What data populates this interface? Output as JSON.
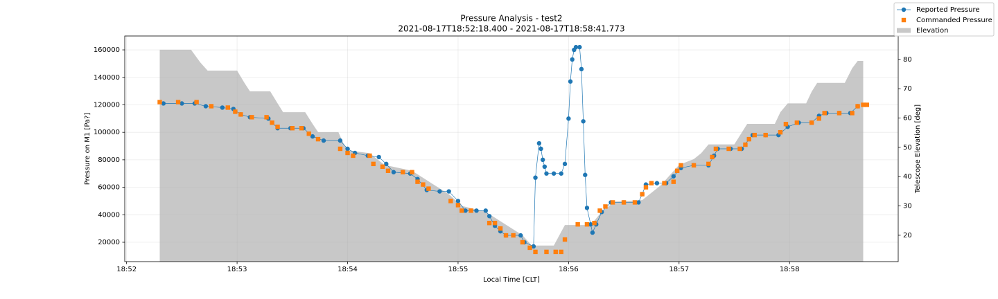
{
  "chart_data": {
    "type": "line",
    "title": "Pressure Analysis - test2",
    "subtitle": "2021-08-17T18:52:18.400 - 2021-08-17T18:58:41.773",
    "x_label": "Local Time [CLT]",
    "y_label": "Pressure on M1 [Pa?]",
    "y2_label": "Telescope Elevation [deg]",
    "xlim": [
      "18:51:59",
      "18:58:59"
    ],
    "xticks": [
      "18:52",
      "18:53",
      "18:54",
      "18:55",
      "18:56",
      "18:57",
      "18:58"
    ],
    "ylim": [
      5900,
      170100
    ],
    "yticks": [
      20000,
      40000,
      60000,
      80000,
      100000,
      120000,
      140000,
      160000
    ],
    "y2lim": [
      11,
      88
    ],
    "y2ticks": [
      20,
      30,
      40,
      50,
      60,
      70,
      80
    ],
    "grid": true,
    "legend": "upper right",
    "series": [
      {
        "name": "Reported Pressure",
        "color": "#1f77b4",
        "kind": "line-marker",
        "x": [
          "18:52:20",
          "18:52:30",
          "18:52:37",
          "18:52:43",
          "18:52:52",
          "18:52:58",
          "18:53:02",
          "18:53:07",
          "18:53:17",
          "18:53:22",
          "18:53:29",
          "18:53:36",
          "18:53:41",
          "18:53:47",
          "18:53:56",
          "18:54:00",
          "18:54:04",
          "18:54:11",
          "18:54:17",
          "18:54:21",
          "18:54:25",
          "18:54:34",
          "18:54:38",
          "18:54:43",
          "18:54:50",
          "18:54:55",
          "18:55:00",
          "18:55:04",
          "18:55:10",
          "18:55:15",
          "18:55:17",
          "18:55:20",
          "18:55:23",
          "18:55:26",
          "18:55:34",
          "18:55:36",
          "18:55:41",
          "18:55:42",
          "18:55:44",
          "18:55:45",
          "18:55:46",
          "18:55:47",
          "18:55:48",
          "18:55:52",
          "18:55:56",
          "18:55:58",
          "18:56:00",
          "18:56:01",
          "18:56:02",
          "18:56:03",
          "18:56:04",
          "18:56:06",
          "18:56:07",
          "18:56:08",
          "18:56:09",
          "18:56:10",
          "18:56:12",
          "18:56:13",
          "18:56:15",
          "18:56:18",
          "18:56:23",
          "18:56:30",
          "18:56:38",
          "18:56:40",
          "18:56:42",
          "18:56:48",
          "18:56:53",
          "18:56:57",
          "18:57:01",
          "18:57:08",
          "18:57:16",
          "18:57:19",
          "18:57:21",
          "18:57:28",
          "18:57:34",
          "18:57:38",
          "18:57:40",
          "18:57:47",
          "18:57:54",
          "18:57:59",
          "18:58:05",
          "18:58:12",
          "18:58:16",
          "18:58:20",
          "18:58:27",
          "18:58:33",
          "18:58:37"
        ],
        "values": [
          121000,
          121000,
          121000,
          119000,
          118000,
          117000,
          113000,
          111000,
          110000,
          103000,
          103000,
          103000,
          97000,
          94000,
          94000,
          88000,
          85000,
          83000,
          82000,
          77000,
          71000,
          70000,
          66000,
          58000,
          57000,
          57000,
          50000,
          43000,
          43000,
          43000,
          39000,
          32000,
          28000,
          25000,
          25000,
          20000,
          17000,
          67000,
          92000,
          88000,
          80000,
          75000,
          70000,
          70000,
          70000,
          77000,
          110000,
          137000,
          153000,
          160000,
          162000,
          162000,
          146000,
          108000,
          69000,
          45000,
          33000,
          27000,
          33000,
          42000,
          49000,
          49000,
          49000,
          55000,
          62000,
          63000,
          63000,
          68000,
          74000,
          76000,
          76000,
          83000,
          88000,
          88000,
          88000,
          95000,
          98000,
          98000,
          98000,
          104000,
          107000,
          107000,
          112000,
          114000,
          114000,
          114000,
          119000
        ]
      },
      {
        "name": "Commanded Pressure",
        "color": "#ff7f0e",
        "kind": "scatter",
        "x": [
          "18:52:18",
          "18:52:28",
          "18:52:38",
          "18:52:46",
          "18:52:55",
          "18:52:59",
          "18:53:02",
          "18:53:08",
          "18:53:16",
          "18:53:19",
          "18:53:22",
          "18:53:30",
          "18:53:35",
          "18:53:39",
          "18:53:44",
          "18:53:56",
          "18:54:00",
          "18:54:03",
          "18:54:12",
          "18:54:14",
          "18:54:19",
          "18:54:22",
          "18:54:30",
          "18:54:35",
          "18:54:38",
          "18:54:41",
          "18:54:44",
          "18:54:56",
          "18:55:00",
          "18:55:02",
          "18:55:07",
          "18:55:17",
          "18:55:20",
          "18:55:23",
          "18:55:26",
          "18:55:30",
          "18:55:35",
          "18:55:39",
          "18:55:42",
          "18:55:48",
          "18:55:53",
          "18:55:56",
          "18:55:58",
          "18:56:05",
          "18:56:10",
          "18:56:14",
          "18:56:17",
          "18:56:20",
          "18:56:24",
          "18:56:30",
          "18:56:36",
          "18:56:40",
          "18:56:42",
          "18:56:45",
          "18:56:52",
          "18:56:57",
          "18:56:59",
          "18:57:01",
          "18:57:08",
          "18:57:16",
          "18:57:18",
          "18:57:20",
          "18:57:27",
          "18:57:33",
          "18:57:36",
          "18:57:38",
          "18:57:41",
          "18:57:47",
          "18:57:55",
          "18:57:58",
          "18:58:04",
          "18:58:12",
          "18:58:16",
          "18:58:19",
          "18:58:27",
          "18:58:34",
          "18:58:37",
          "18:58:40",
          "18:58:42"
        ],
        "values": [
          122000,
          122000,
          122000,
          119000,
          118000,
          115000,
          113000,
          111000,
          111000,
          107000,
          104000,
          103000,
          103000,
          99000,
          95000,
          88000,
          85000,
          83000,
          83000,
          77000,
          75000,
          72000,
          71000,
          71000,
          64000,
          62000,
          59000,
          50000,
          47000,
          43000,
          43000,
          34000,
          34000,
          30000,
          25000,
          25000,
          20000,
          16000,
          13000,
          13000,
          13000,
          13000,
          22000,
          33000,
          33000,
          34000,
          43000,
          46000,
          49000,
          49000,
          49000,
          55000,
          60000,
          63000,
          63000,
          64000,
          72000,
          76000,
          76000,
          77000,
          82000,
          88000,
          88000,
          88000,
          91000,
          95000,
          98000,
          98000,
          100000,
          106000,
          107000,
          107000,
          110000,
          114000,
          114000,
          114000,
          119000,
          120000,
          120000
        ]
      },
      {
        "name": "Elevation",
        "color": "#c8c8c8",
        "kind": "area",
        "axis": "y2",
        "x": [
          "18:52:18",
          "18:52:35",
          "18:52:40",
          "18:52:44",
          "18:53:00",
          "18:53:04",
          "18:53:07",
          "18:53:18",
          "18:53:22",
          "18:53:25",
          "18:53:37",
          "18:53:41",
          "18:53:44",
          "18:53:55",
          "18:53:58",
          "18:54:00",
          "18:54:12",
          "18:54:20",
          "18:54:35",
          "18:54:45",
          "18:54:55",
          "18:55:02",
          "18:55:15",
          "18:55:25",
          "18:55:35",
          "18:55:40",
          "18:55:52",
          "18:55:55",
          "18:55:58",
          "18:56:12",
          "18:56:18",
          "18:56:25",
          "18:56:40",
          "18:56:50",
          "18:57:00",
          "18:57:08",
          "18:57:12",
          "18:57:16",
          "18:57:30",
          "18:57:34",
          "18:57:37",
          "18:57:52",
          "18:57:55",
          "18:57:59",
          "18:58:09",
          "18:58:12",
          "18:58:15",
          "18:58:30",
          "18:58:34",
          "18:58:37",
          "18:58:40"
        ],
        "values": [
          83.3,
          83.3,
          79,
          76.2,
          76.2,
          72,
          69.1,
          69.1,
          65,
          62,
          62,
          58,
          55.2,
          55.2,
          51,
          49,
          48,
          44,
          42,
          38,
          34,
          30,
          28,
          24,
          20,
          16.5,
          16.5,
          20,
          23.5,
          23.5,
          28,
          31.5,
          32,
          37,
          44,
          46,
          48,
          51,
          51,
          55,
          58,
          58,
          62,
          65,
          65,
          69,
          72,
          72,
          77,
          79.5,
          79.5
        ]
      }
    ]
  }
}
